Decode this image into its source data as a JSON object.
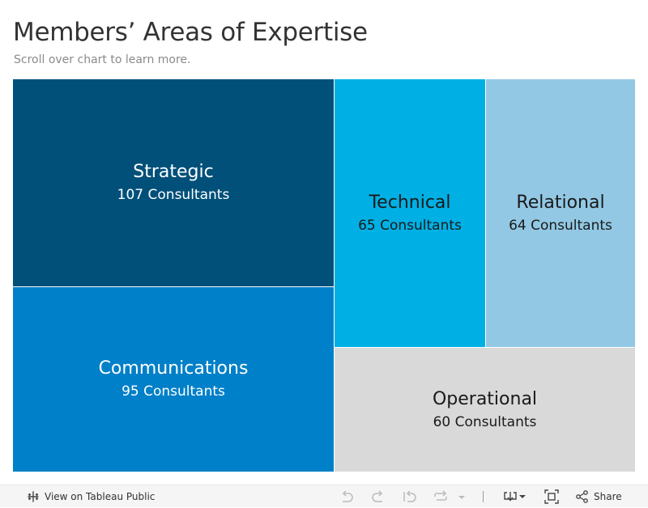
{
  "header": {
    "title": "Members’ Areas of Expertise",
    "subtitle": "Scroll over chart to learn more."
  },
  "chart_data": {
    "type": "treemap",
    "unit_label": "Consultants",
    "items": [
      {
        "name": "Strategic",
        "value": 107,
        "label": "107 Consultants",
        "color": "#00507a",
        "text_color": "#ffffff"
      },
      {
        "name": "Communications",
        "value": 95,
        "label": "95 Consultants",
        "color": "#0080c8",
        "text_color": "#ffffff"
      },
      {
        "name": "Technical",
        "value": 65,
        "label": "65 Consultants",
        "color": "#00b0e4",
        "text_color": "#1a1a1a"
      },
      {
        "name": "Relational",
        "value": 64,
        "label": "64 Consultants",
        "color": "#92c8e4",
        "text_color": "#1a1a1a"
      },
      {
        "name": "Operational",
        "value": 60,
        "label": "60 Consultants",
        "color": "#d9d9d9",
        "text_color": "#1a1a1a"
      }
    ]
  },
  "toolbar": {
    "view_label": "View on Tableau Public",
    "share_label": "Share",
    "icons": [
      "tableau-logo-icon",
      "undo-icon",
      "redo-icon",
      "revert-icon",
      "refresh-icon",
      "download-icon",
      "fullscreen-icon",
      "share-icon"
    ]
  }
}
